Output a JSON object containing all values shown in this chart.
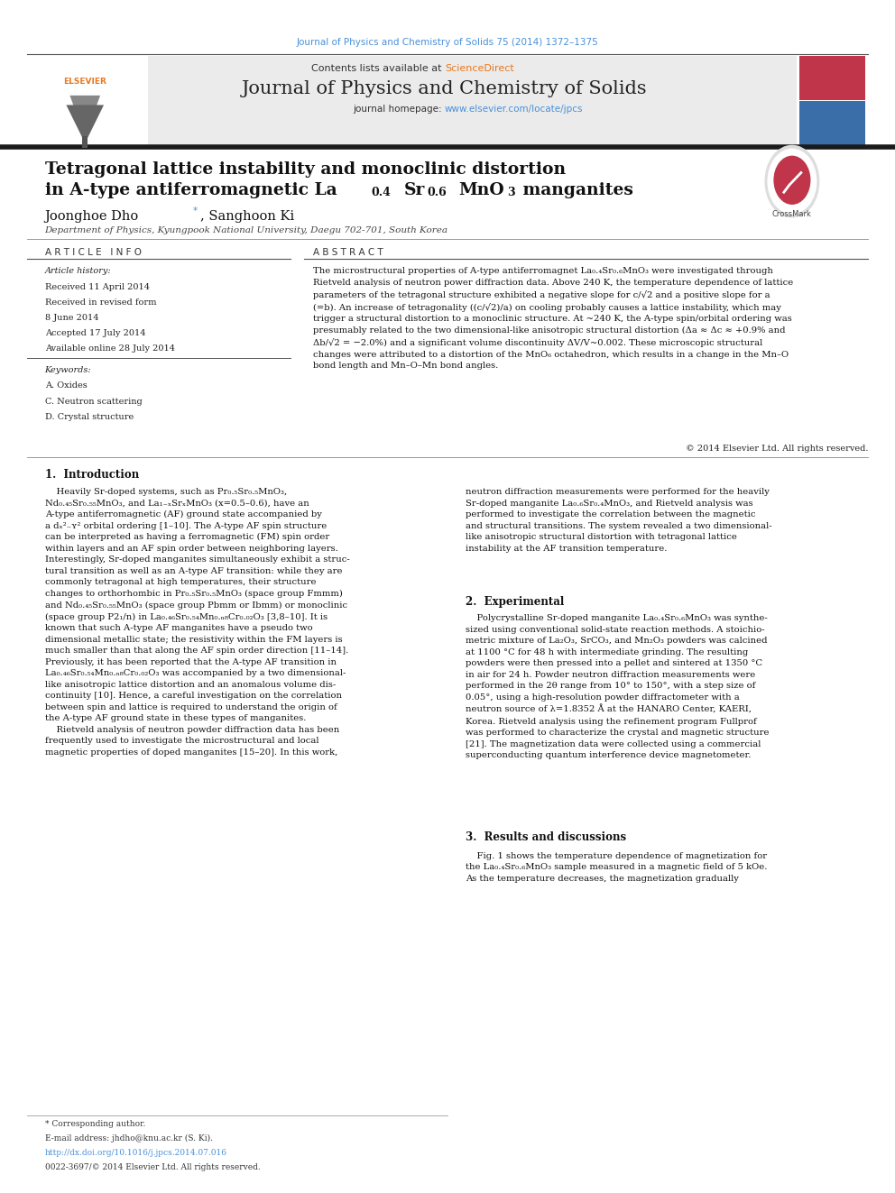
{
  "page_width": 9.92,
  "page_height": 13.23,
  "bg_color": "#ffffff",
  "journal_citation": "Journal of Physics and Chemistry of Solids 75 (2014) 1372–1375",
  "journal_citation_color": "#4a90d9",
  "contents_text": "Contents lists available at ",
  "sciencedirect_text": "ScienceDirect",
  "sciencedirect_color": "#e87820",
  "journal_name": "Journal of Physics and Chemistry of Solids",
  "journal_homepage_label": "journal homepage: ",
  "journal_homepage_url": "www.elsevier.com/locate/jpcs",
  "journal_homepage_color": "#4a90d9",
  "title_line1": "Tetragonal lattice instability and monoclinic distortion",
  "title_line2_pre": "in A-type antiferromagnetic La",
  "title_line2_end": " manganites",
  "authors_name": "Joonghoe Dho",
  "authors_rest": ", Sanghoon Ki",
  "affiliation": "Department of Physics, Kyungpook National University, Daegu 702-701, South Korea",
  "article_info_header": "A R T I C L E   I N F O",
  "abstract_header": "A B S T R A C T",
  "article_history_label": "Article history:",
  "article_history": [
    "Received 11 April 2014",
    "Received in revised form",
    "8 June 2014",
    "Accepted 17 July 2014",
    "Available online 28 July 2014"
  ],
  "keywords_label": "Keywords:",
  "keywords": [
    "A. Oxides",
    "C. Neutron scattering",
    "D. Crystal structure"
  ],
  "copyright_text": "© 2014 Elsevier Ltd. All rights reserved.",
  "footer_footnote": "* Corresponding author.",
  "footer_email": "E-mail address: jhdho@knu.ac.kr (S. Ki).",
  "footer_doi": "http://dx.doi.org/10.1016/j.jpcs.2014.07.016",
  "footer_issn": "0022-3697/© 2014 Elsevier Ltd. All rights reserved.",
  "thick_bar_color": "#1a1a1a",
  "header_bg": "#ebebeb",
  "elsevier_color": "#e87820",
  "red_box_color": "#c0354a",
  "blue_box_color": "#3a6ea8",
  "link_color": "#4a90d9",
  "text_color": "#111111",
  "gray_text": "#444444",
  "section_line_color": "#555555"
}
